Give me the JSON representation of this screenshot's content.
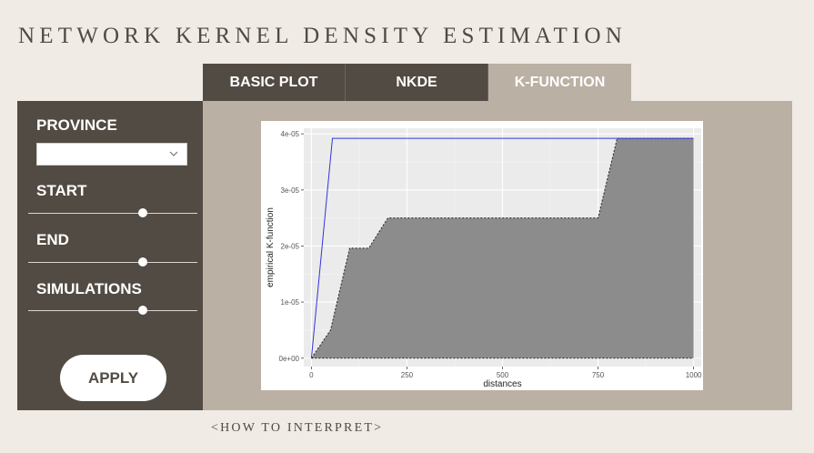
{
  "app": {
    "title": "NETWORK KERNEL DENSITY ESTIMATION"
  },
  "tabs": [
    {
      "label": "BASIC PLOT",
      "active": false
    },
    {
      "label": "NKDE",
      "active": false
    },
    {
      "label": "K-FUNCTION",
      "active": true
    }
  ],
  "sidebar": {
    "province_label": "PROVINCE",
    "province_value": "",
    "start_label": "START",
    "end_label": "END",
    "simulations_label": "SIMULATIONS",
    "apply_label": "APPLY"
  },
  "footer": {
    "interpret_label": "<HOW TO INTERPRET>"
  },
  "colors": {
    "dark_panel": "#524b43",
    "light_panel": "#bab0a4",
    "page_bg": "#f0ebe5",
    "plot_bg": "#ebebeb",
    "envelope_fill": "#8c8c8c",
    "observed_line": "#3333dd"
  },
  "chart_data": {
    "type": "area",
    "xlabel": "distances",
    "ylabel": "empirical K-function",
    "xlim": [
      -20,
      1020
    ],
    "ylim": [
      -1.5e-06,
      4.1e-05
    ],
    "x_ticks": [
      0,
      250,
      500,
      750,
      1000
    ],
    "x_tick_labels": [
      "0",
      "250",
      "500",
      "750",
      "1000"
    ],
    "y_ticks": [
      0,
      1e-05,
      2e-05,
      3e-05,
      4e-05
    ],
    "y_tick_labels": [
      "0e+00",
      "1e-05",
      "2e-05",
      "3e-05",
      "4e-05"
    ],
    "grid": true,
    "observed": {
      "x": [
        0,
        55,
        1000
      ],
      "y": [
        0,
        3.92e-05,
        3.92e-05
      ]
    },
    "envelope_upper": {
      "x": [
        0,
        50,
        100,
        150,
        200,
        750,
        800,
        1000
      ],
      "y": [
        0,
        5e-06,
        1.96e-05,
        1.96e-05,
        2.5e-05,
        2.5e-05,
        3.92e-05,
        3.92e-05
      ]
    },
    "envelope_lower": {
      "x": [
        0,
        1000
      ],
      "y": [
        0,
        0
      ]
    }
  }
}
